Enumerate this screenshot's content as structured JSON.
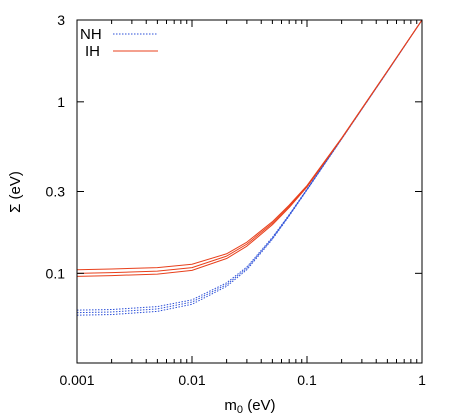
{
  "chart_data": {
    "type": "line",
    "title": "",
    "xlabel_main": "m",
    "xlabel_sub": "0",
    "xlabel_unit": " (eV)",
    "ylabel": "Σ (eV)",
    "x_scale": "log",
    "y_scale": "log",
    "xlim": [
      0.001,
      1
    ],
    "ylim": [
      0.03,
      3
    ],
    "x_ticks": [
      {
        "value": 0.001,
        "label": "0.001"
      },
      {
        "value": 0.01,
        "label": "0.01"
      },
      {
        "value": 0.1,
        "label": "0.1"
      },
      {
        "value": 1,
        "label": "1"
      }
    ],
    "y_ticks": [
      {
        "value": 0.1,
        "label": "0.1"
      },
      {
        "value": 0.3,
        "label": "0.3"
      },
      {
        "value": 1,
        "label": "1"
      },
      {
        "value": 3,
        "label": "3"
      }
    ],
    "legend_position": "top-left",
    "series": [
      {
        "name": "NH",
        "style": "dotted",
        "color": "#2b4fd8",
        "line": "upper",
        "x": [
          0.001,
          0.002,
          0.005,
          0.01,
          0.02,
          0.03,
          0.05,
          0.07,
          0.1,
          0.2,
          0.5,
          1
        ],
        "y": [
          0.061,
          0.0615,
          0.064,
          0.07,
          0.088,
          0.109,
          0.162,
          0.22,
          0.31,
          0.61,
          1.5,
          3.0
        ]
      },
      {
        "name": "NH",
        "style": "dotted",
        "color": "#2b4fd8",
        "line": "middle",
        "x": [
          0.001,
          0.002,
          0.005,
          0.01,
          0.02,
          0.03,
          0.05,
          0.07,
          0.1,
          0.2,
          0.5,
          1
        ],
        "y": [
          0.059,
          0.0595,
          0.062,
          0.068,
          0.086,
          0.107,
          0.16,
          0.218,
          0.308,
          0.608,
          1.5,
          3.0
        ]
      },
      {
        "name": "NH",
        "style": "dotted",
        "color": "#2b4fd8",
        "line": "lower",
        "x": [
          0.001,
          0.002,
          0.005,
          0.01,
          0.02,
          0.03,
          0.05,
          0.07,
          0.1,
          0.2,
          0.5,
          1
        ],
        "y": [
          0.057,
          0.0575,
          0.06,
          0.066,
          0.084,
          0.105,
          0.158,
          0.216,
          0.306,
          0.606,
          1.5,
          3.0
        ]
      },
      {
        "name": "IH",
        "style": "solid",
        "color": "#e8401c",
        "line": "upper",
        "x": [
          0.001,
          0.002,
          0.005,
          0.01,
          0.02,
          0.03,
          0.05,
          0.07,
          0.1,
          0.2,
          0.5,
          1
        ],
        "y": [
          0.105,
          0.106,
          0.108,
          0.113,
          0.13,
          0.152,
          0.2,
          0.25,
          0.325,
          0.615,
          1.51,
          3.0
        ]
      },
      {
        "name": "IH",
        "style": "solid",
        "color": "#e8401c",
        "line": "middle",
        "x": [
          0.001,
          0.002,
          0.005,
          0.01,
          0.02,
          0.03,
          0.05,
          0.07,
          0.1,
          0.2,
          0.5,
          1
        ],
        "y": [
          0.1,
          0.101,
          0.103,
          0.108,
          0.126,
          0.148,
          0.196,
          0.246,
          0.322,
          0.612,
          1.51,
          3.0
        ]
      },
      {
        "name": "IH",
        "style": "solid",
        "color": "#e8401c",
        "line": "lower",
        "x": [
          0.001,
          0.002,
          0.005,
          0.01,
          0.02,
          0.03,
          0.05,
          0.07,
          0.1,
          0.2,
          0.5,
          1
        ],
        "y": [
          0.096,
          0.097,
          0.099,
          0.104,
          0.122,
          0.144,
          0.192,
          0.242,
          0.319,
          0.61,
          1.51,
          3.0
        ]
      }
    ],
    "legend": [
      {
        "label": "NH",
        "style": "dotted",
        "color": "#2b4fd8"
      },
      {
        "label": "IH",
        "style": "solid",
        "color": "#e8401c"
      }
    ]
  }
}
